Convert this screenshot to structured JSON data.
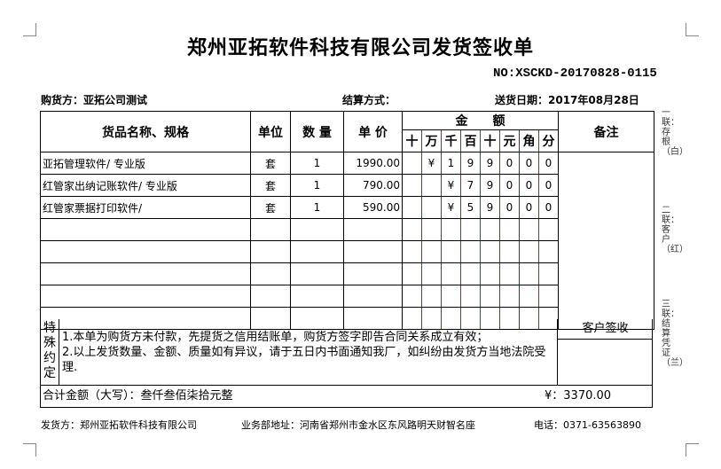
{
  "title": "郑州亚拓软件科技有限公司发货签收单",
  "number": "NO:XSCKD-20170828-0115",
  "buyer": "购货方：亚拓公司测试",
  "settlement": "结算方式：",
  "delivery_date": "送货日期：2017年08月28日",
  "columns": {
    "name": "货品名称、规格",
    "unit": "单位",
    "qty": "数 量",
    "price": "单 价",
    "amount": "金　　额",
    "remark": "备注",
    "digits": [
      "十",
      "万",
      "千",
      "百",
      "十",
      "元",
      "角",
      "分"
    ]
  },
  "rows": [
    {
      "name": "亚拓管理软件/ 专业版",
      "unit": "套",
      "qty": "1",
      "price": "1990.00",
      "digits": [
        "",
        "¥",
        "1",
        "9",
        "9",
        "0",
        "0",
        "0"
      ]
    },
    {
      "name": "红管家出纳记账软件/ 专业版",
      "unit": "套",
      "qty": "1",
      "price": "790.00",
      "digits": [
        "",
        "",
        "¥",
        "7",
        "9",
        "0",
        "0",
        "0"
      ]
    },
    {
      "name": "红管家票据打印软件/",
      "unit": "套",
      "qty": "1",
      "price": "590.00",
      "digits": [
        "",
        "",
        "¥",
        "5",
        "9",
        "0",
        "0",
        "0"
      ]
    },
    {
      "name": "",
      "unit": "",
      "qty": "",
      "price": "",
      "digits": [
        "",
        "",
        "",
        "",
        "",
        "",
        "",
        ""
      ]
    },
    {
      "name": "",
      "unit": "",
      "qty": "",
      "price": "",
      "digits": [
        "",
        "",
        "",
        "",
        "",
        "",
        "",
        ""
      ]
    },
    {
      "name": "",
      "unit": "",
      "qty": "",
      "price": "",
      "digits": [
        "",
        "",
        "",
        "",
        "",
        "",
        "",
        ""
      ]
    },
    {
      "name": "",
      "unit": "",
      "qty": "",
      "price": "",
      "digits": [
        "",
        "",
        "",
        "",
        "",
        "",
        "",
        ""
      ]
    },
    {
      "name": "",
      "unit": "",
      "qty": "",
      "price": "",
      "digits": [
        "",
        "",
        "",
        "",
        "",
        "",
        "",
        ""
      ]
    }
  ],
  "terms_label": "特殊约定",
  "terms": [
    "1.本单为购货方未付款，先提货之信用结账单，购货方签字即告合同关系成立有效；",
    "2.以上发货数量、金额、质量如有异议，请于五日内书面通知我厂，如纠纷由发货方当地法院受理."
  ],
  "customer_sign": "客户签收",
  "total_words": "合计金额（大写）：叁仟叁佰柒拾元整",
  "total_amount": "¥：3370.00",
  "seller": "发货方：郑州亚拓软件科技有限公司",
  "address": "业务部地址：河南省郑州市金水区东风路明天财智名座",
  "phone": "电话：0371-63563890",
  "copies": [
    "一联：存根（白）",
    "二联：客户（红）",
    "三联：结算凭证（兰）"
  ],
  "colors": {
    "digit_line": "#0a7a0a",
    "decimal_line": "#cc0000"
  }
}
